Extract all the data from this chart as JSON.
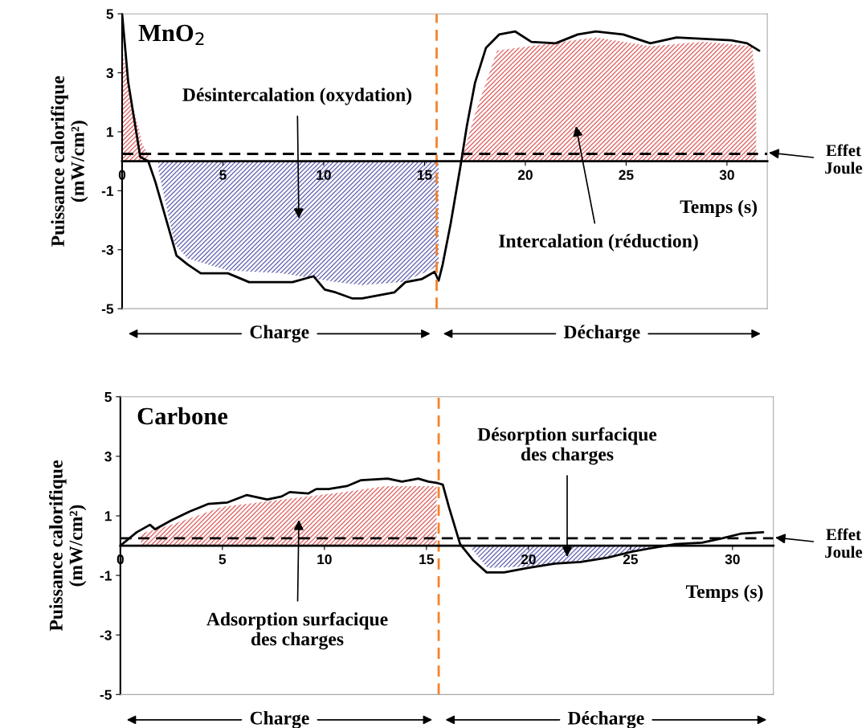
{
  "chart_data": [
    {
      "type": "line",
      "title": "MnO$_{2}$",
      "xlabel": "Temps (s)",
      "ylabel": "Puissance calorifique\n(mW/cm²)",
      "xlim": [
        0,
        32
      ],
      "ylim": [
        -5,
        5
      ],
      "xticks": [
        0,
        5,
        10,
        15,
        20,
        25,
        30
      ],
      "yticks": [
        -5,
        -3,
        -1,
        1,
        3,
        5
      ],
      "series": [
        {
          "type": "area",
          "color": "#e06666",
          "x": [
            0,
            0.5,
            1.0,
            1.3
          ],
          "values": [
            3.8,
            2.0,
            0.6,
            0.2
          ]
        },
        {
          "type": "area",
          "color": "#6a6ab4",
          "x": [
            1.8,
            2.6,
            3.25,
            5.25,
            7.9,
            10.6,
            11.9,
            13.9,
            15.25,
            15.7
          ],
          "values": [
            -0.3,
            -2.8,
            -3.3,
            -3.7,
            -3.8,
            -4.1,
            -4.2,
            -4.1,
            -3.7,
            -3.5
          ]
        },
        {
          "type": "area",
          "color": "#e06666",
          "x": [
            16.9,
            17.5,
            18.6,
            20.2,
            23.5,
            26.2,
            28.85,
            31.25,
            31.45,
            31.45
          ],
          "values": [
            0.2,
            1.6,
            3.75,
            3.9,
            4.2,
            3.9,
            4.05,
            3.9,
            2.5,
            0.5
          ]
        },
        {
          "color": "#000000",
          "x": [
            0,
            0.3,
            0.9,
            1.3,
            1.65,
            2.3,
            2.7,
            3.25,
            3.9,
            5.25,
            6.3,
            7.4,
            8.45,
            9.5,
            10.05,
            10.6,
            11.4,
            11.9,
            12.7,
            13.5,
            14.05,
            14.85,
            15.5,
            15.7,
            15.9,
            16.3,
            16.8,
            17.1,
            17.5,
            18.05,
            18.7,
            19.5,
            20.3,
            21.5,
            22.6,
            23.5,
            24.85,
            26.2,
            27.5,
            28.85,
            30.2,
            31.0,
            31.6
          ],
          "values": [
            5,
            2.7,
            0.15,
            0,
            -0.7,
            -2.25,
            -3.2,
            -3.5,
            -3.8,
            -3.8,
            -4.1,
            -4.1,
            -4.1,
            -3.9,
            -4.35,
            -4.45,
            -4.65,
            -4.65,
            -4.55,
            -4.45,
            -4.1,
            -4.0,
            -3.75,
            -4.05,
            -3.5,
            -2.1,
            -0.1,
            1.2,
            2.65,
            3.85,
            4.3,
            4.4,
            4.05,
            4.0,
            4.3,
            4.4,
            4.3,
            4.0,
            4.2,
            4.15,
            4.1,
            4.0,
            3.75
          ]
        }
      ],
      "ref_lines": [
        {
          "axis": "y",
          "value": 0.25,
          "color": "#000000",
          "line_style": "dashed"
        },
        {
          "axis": "x",
          "value": 15.6,
          "color": "#f5822a",
          "line_style": "dashed"
        }
      ],
      "annotations": [
        "Désintercalation (oxydation)",
        "Intercalation (réduction)",
        "Effet\nJoule",
        "Charge",
        "Décharge"
      ]
    },
    {
      "type": "line",
      "title": "Carbone",
      "xlabel": "Temps (s)",
      "ylabel": "Puissance calorifique\n(mW/cm²)",
      "xlim": [
        0,
        32
      ],
      "ylim": [
        -5,
        5
      ],
      "xticks": [
        0,
        5,
        10,
        15,
        20,
        25,
        30
      ],
      "yticks": [
        -5,
        -3,
        -1,
        1,
        3,
        5
      ],
      "series": [
        {
          "type": "area",
          "color": "#e06666",
          "x": [
            1.0,
            2.5,
            5.0,
            8.0,
            11.0,
            13.0,
            15.5
          ],
          "values": [
            0.4,
            0.7,
            1.3,
            1.55,
            1.8,
            2.0,
            2.0
          ]
        },
        {
          "type": "area",
          "color": "#6a6ab4",
          "x": [
            17.2,
            18.0,
            20.0,
            22.0,
            24.0,
            26.0,
            27.5
          ],
          "values": [
            -0.1,
            -0.75,
            -0.7,
            -0.55,
            -0.35,
            -0.1,
            0
          ]
        },
        {
          "color": "#000000",
          "x": [
            0,
            0.8,
            1.45,
            1.7,
            2.5,
            3.4,
            4.3,
            5.25,
            6.2,
            7.2,
            7.9,
            8.3,
            9.2,
            9.6,
            10.2,
            11.1,
            11.8,
            13.1,
            13.8,
            14.6,
            15.1,
            15.55,
            15.8,
            16.1,
            16.65,
            17.3,
            17.95,
            18.8,
            19.95,
            21.3,
            22.55,
            23.9,
            25.1,
            25.9,
            27.2,
            28.5,
            29.5,
            30.4,
            31.5
          ],
          "values": [
            0,
            0.45,
            0.7,
            0.55,
            0.85,
            1.15,
            1.4,
            1.45,
            1.7,
            1.55,
            1.65,
            1.8,
            1.75,
            1.9,
            1.9,
            2.0,
            2.2,
            2.25,
            2.15,
            2.25,
            2.15,
            2.1,
            2.05,
            1.3,
            0.05,
            -0.5,
            -0.9,
            -0.9,
            -0.75,
            -0.6,
            -0.55,
            -0.4,
            -0.2,
            -0.1,
            0.05,
            0.1,
            0.25,
            0.4,
            0.45
          ]
        }
      ],
      "ref_lines": [
        {
          "axis": "y",
          "value": 0.25,
          "color": "#000000",
          "line_style": "dashed"
        },
        {
          "axis": "x",
          "value": 15.6,
          "color": "#f5822a",
          "line_style": "dashed"
        }
      ],
      "annotations": [
        "Adsorption surfacique\ndes charges",
        "Désorption surfacique\ndes charges",
        "Effet\nJoule",
        "Charge",
        "Décharge"
      ]
    }
  ]
}
